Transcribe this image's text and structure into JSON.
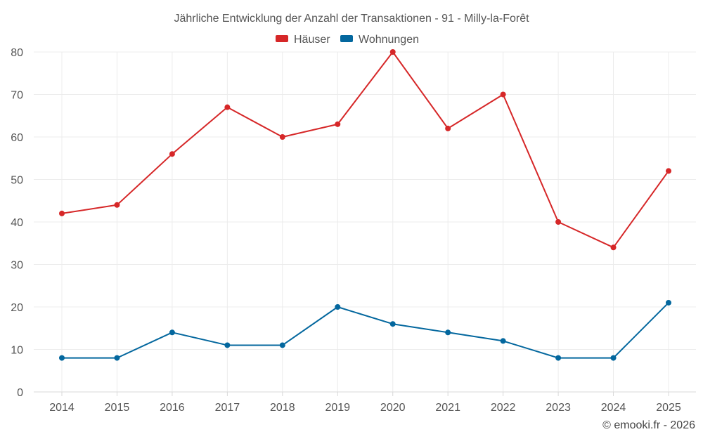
{
  "chart_data": {
    "type": "line",
    "title": "Jährliche Entwicklung der Anzahl der Transaktionen - 91 - Milly-la-Forêt",
    "categories": [
      "2014",
      "2015",
      "2016",
      "2017",
      "2018",
      "2019",
      "2020",
      "2021",
      "2022",
      "2023",
      "2024",
      "2025"
    ],
    "series": [
      {
        "name": "Häuser",
        "color": "#d62728",
        "values": [
          42,
          44,
          56,
          67,
          60,
          63,
          80,
          62,
          70,
          40,
          34,
          52
        ]
      },
      {
        "name": "Wohnungen",
        "color": "#03679e",
        "values": [
          8,
          8,
          14,
          11,
          11,
          20,
          16,
          14,
          12,
          8,
          8,
          21
        ]
      }
    ],
    "ylim": [
      0,
      80
    ],
    "yticks": [
      0,
      10,
      20,
      30,
      40,
      50,
      60,
      70,
      80
    ],
    "grid": true,
    "legend": "top-center",
    "xlabel": "",
    "ylabel": ""
  },
  "credit": "© emooki.fr - 2026"
}
